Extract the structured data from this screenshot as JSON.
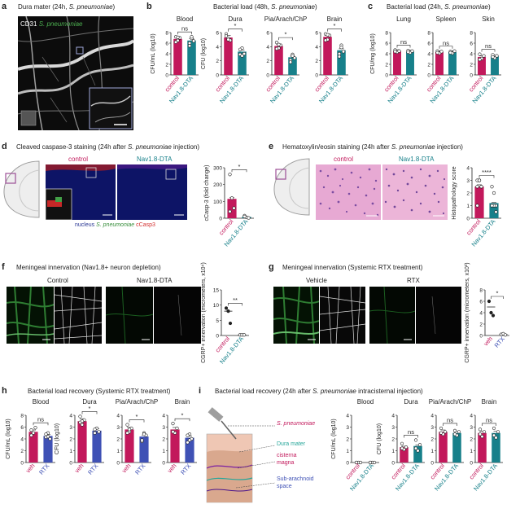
{
  "colors": {
    "control": "#c2185b",
    "nav": "#17808a",
    "veh": "#c2185b",
    "rtx": "#3f51b5",
    "green": "#4caf50",
    "red": "#d32f2f",
    "blue": "#283593"
  },
  "panels": {
    "a": {
      "letter": "a",
      "title": "Dura mater (24h, ",
      "title_sp": "S. pneumoniae",
      "title_end": ")",
      "cd31": "CD31",
      "sp": "S. pneumoniae"
    },
    "b": {
      "letter": "b",
      "title": "Bacterial load (48h, ",
      "title_sp": "S. pneumoniae",
      "title_end": ")"
    },
    "c": {
      "letter": "c",
      "title": "Bacterial load (24h, ",
      "title_sp": "S. pneumoniae",
      "title_end": ")"
    },
    "d": {
      "letter": "d",
      "title": "Cleaved caspase-3 staining (24h after ",
      "title_sp": "S. pneumoniae",
      "title_end": " injection)",
      "control": "control",
      "nav": "Nav1.8-DTA",
      "legend_nucleus": "nucleus",
      "legend_sp": "S. pneumoniae",
      "legend_casp": "cCasp3"
    },
    "e": {
      "letter": "e",
      "title": "Hematoxylin/eosin staining (24h after ",
      "title_sp": "S. pneumoniae",
      "title_end": " injection)",
      "control": "control",
      "nav": "Nav1.8-DTA"
    },
    "f": {
      "letter": "f",
      "title": "Meningeal innervation (Nav1.8+ neuron depletion)",
      "control": "Control",
      "nav": "Nav1.8-DTA"
    },
    "g": {
      "letter": "g",
      "title": "Meningeal innervation (Systemic RTX treatment)",
      "vehicle": "Vehicle",
      "rtx": "RTX"
    },
    "h": {
      "letter": "h",
      "title": "Bacterial load recovery (Systemic RTX treatment)"
    },
    "i": {
      "letter": "i",
      "title": "Bacterial load recovery (24h after ",
      "title_sp": "S. pneumoniae",
      "title_end": " intracisternal injection)",
      "lbl_sp": "S. pneumoniae",
      "lbl_dura": "Dura mater",
      "lbl_cist1": "cisterna",
      "lbl_cist2": "magna",
      "lbl_sub1": "Sub-arachnoid",
      "lbl_sub2": "space"
    }
  },
  "chart_data": [
    {
      "id": "b-blood",
      "type": "bar",
      "title": "Blood",
      "ylabel": "CFU/mL (log10)",
      "ylim": [
        0,
        8
      ],
      "yticks": [
        0,
        2,
        4,
        6,
        8
      ],
      "categories": [
        "control",
        "Nav1.8-DTA"
      ],
      "values": [
        6.8,
        6.5
      ],
      "points": [
        [
          7.2,
          6.5,
          7.0,
          6.2,
          7.1
        ],
        [
          6.0,
          6.9,
          6.4,
          5.5,
          7.2
        ]
      ],
      "sig": "ns"
    },
    {
      "id": "b-dura",
      "type": "bar",
      "title": "Dura",
      "ylabel": "CFU (log10)",
      "ylim": [
        0,
        6
      ],
      "yticks": [
        0,
        2,
        4,
        6
      ],
      "categories": [
        "control",
        "Nav1.8-DTA"
      ],
      "values": [
        5.3,
        3.3
      ],
      "points": [
        [
          5.8,
          5.2,
          4.9,
          5.5,
          5.0
        ],
        [
          2.9,
          3.8,
          3.0,
          3.6,
          2.7
        ]
      ],
      "sig": "*"
    },
    {
      "id": "b-pia",
      "type": "bar",
      "title": "Pia/Arach/ChP",
      "ylabel": "",
      "ylim": [
        0,
        6
      ],
      "yticks": [
        0,
        2,
        4,
        6
      ],
      "categories": [
        "control",
        "Nav1.8-DTA"
      ],
      "values": [
        4.1,
        2.5
      ],
      "points": [
        [
          4.6,
          3.8,
          4.2,
          3.7,
          4.3
        ],
        [
          2.1,
          2.9,
          2.4,
          1.8,
          2.7
        ]
      ],
      "sig": "*"
    },
    {
      "id": "b-brain",
      "type": "bar",
      "title": "Brain",
      "ylabel": "",
      "ylim": [
        0,
        6
      ],
      "yticks": [
        0,
        2,
        4,
        6
      ],
      "categories": [
        "control",
        "Nav1.8-DTA"
      ],
      "values": [
        5.4,
        3.5
      ],
      "points": [
        [
          5.8,
          5.0,
          5.6,
          4.9,
          5.7
        ],
        [
          3.0,
          4.2,
          3.3,
          2.6,
          3.9
        ]
      ],
      "sig": "*"
    },
    {
      "id": "c-lung",
      "type": "bar",
      "title": "Lung",
      "ylabel": "CFU/mg (log10)",
      "ylim": [
        0,
        8
      ],
      "yticks": [
        0,
        2,
        4,
        6,
        8
      ],
      "categories": [
        "control",
        "Nav1.8-DTA"
      ],
      "values": [
        4.5,
        4.4
      ],
      "points": [
        [
          4.7,
          4.3,
          4.5,
          4.4
        ],
        [
          4.6,
          4.2,
          4.5,
          4.3
        ]
      ],
      "sig": "ns"
    },
    {
      "id": "c-spleen",
      "type": "bar",
      "title": "Spleen",
      "ylabel": "",
      "ylim": [
        0,
        8
      ],
      "yticks": [
        0,
        2,
        4,
        6,
        8
      ],
      "categories": [
        "control",
        "Nav1.8-DTA"
      ],
      "values": [
        4.3,
        4.3
      ],
      "points": [
        [
          4.5,
          4.1,
          4.4,
          4.2
        ],
        [
          4.4,
          4.1,
          4.5,
          4.2
        ]
      ],
      "sig": "ns"
    },
    {
      "id": "c-skin",
      "type": "bar",
      "title": "Skin",
      "ylabel": "",
      "ylim": [
        0,
        8
      ],
      "yticks": [
        0,
        2,
        4,
        6,
        8
      ],
      "categories": [
        "control",
        "Nav1.8-DTA"
      ],
      "values": [
        3.4,
        3.5
      ],
      "points": [
        [
          3.9,
          3.1,
          3.6,
          2.9
        ],
        [
          3.8,
          3.2,
          3.6,
          3.4
        ]
      ],
      "sig": "ns"
    },
    {
      "id": "d-casp",
      "type": "bar",
      "title": "",
      "ylabel": "cCasp-3 (fold change)",
      "ylim": [
        0,
        300
      ],
      "yticks": [
        0,
        100,
        200,
        300
      ],
      "categories": [
        "control",
        "Nav1.8-DTA"
      ],
      "values": [
        115,
        8
      ],
      "points": [
        [
          260,
          120,
          60,
          40
        ],
        [
          15,
          5,
          2,
          10
        ]
      ],
      "sig": "*"
    },
    {
      "id": "e-histo",
      "type": "bar",
      "title": "",
      "ylabel": "Histopathology score",
      "ylim": [
        0,
        4
      ],
      "yticks": [
        0,
        1,
        2,
        3,
        4
      ],
      "categories": [
        "control",
        "Nav1.8-DTA"
      ],
      "values": [
        2.5,
        1.2
      ],
      "points": [
        [
          3,
          3,
          2.5,
          2.5,
          3,
          2.5,
          1,
          3
        ],
        [
          2.5,
          1,
          1,
          1,
          1,
          0.5,
          1,
          2
        ]
      ],
      "sig": "****"
    },
    {
      "id": "f-cgrp",
      "type": "scatter",
      "title": "",
      "ylabel": "CGRP+ innervation (micrometers, x10⁴)",
      "ylim": [
        0,
        15
      ],
      "yticks": [
        0,
        5,
        10,
        15
      ],
      "categories": [
        "control",
        "Nav1.8-DTA"
      ],
      "values": [
        8,
        0.2
      ],
      "points": [
        [
          9,
          8,
          4
        ],
        [
          0.2,
          0.2,
          0.2
        ]
      ],
      "sig": "**"
    },
    {
      "id": "g-cgrp",
      "type": "scatter",
      "title": "",
      "ylabel": "CGRP+ innervation (micrometers, x10³)",
      "ylim": [
        0,
        8
      ],
      "yticks": [
        0,
        2,
        4,
        6,
        8
      ],
      "categories": [
        "veh",
        "RTX"
      ],
      "values": [
        5,
        0.2
      ],
      "points": [
        [
          6,
          4,
          3.5
        ],
        [
          0.2,
          0.3,
          0.1
        ]
      ],
      "sig": "*"
    },
    {
      "id": "h-blood",
      "type": "bar",
      "title": "Blood",
      "ylabel": "CFU/mL (log10)",
      "ylim": [
        0,
        8
      ],
      "yticks": [
        0,
        2,
        4,
        6,
        8
      ],
      "categories": [
        "veh",
        "RTX"
      ],
      "values": [
        5.2,
        4.5
      ],
      "points": [
        [
          5.5,
          5.0,
          5.9,
          4.6
        ],
        [
          4.3,
          5.0,
          4.0,
          4.8,
          4.4
        ]
      ],
      "sig": "ns"
    },
    {
      "id": "h-dura",
      "type": "bar",
      "title": "Dura",
      "ylabel": "CFU (log10)",
      "ylim": [
        0,
        4
      ],
      "yticks": [
        0,
        1,
        2,
        3,
        4
      ],
      "categories": [
        "veh",
        "RTX"
      ],
      "values": [
        3.5,
        2.7
      ],
      "points": [
        [
          3.9,
          3.2,
          3.6,
          3.4,
          3.5
        ],
        [
          2.5,
          2.9,
          2.6,
          2.8
        ]
      ],
      "sig": "*"
    },
    {
      "id": "h-pia",
      "type": "bar",
      "title": "Pia/Arach/ChP",
      "ylabel": "",
      "ylim": [
        0,
        4
      ],
      "yticks": [
        0,
        1,
        2,
        3,
        4
      ],
      "categories": [
        "veh",
        "RTX"
      ],
      "values": [
        2.8,
        2.2
      ],
      "points": [
        [
          3.2,
          2.6,
          2.9,
          2.5,
          2.8
        ],
        [
          1.8,
          2.5,
          2.3,
          1.9,
          2.4
        ]
      ],
      "sig": "*"
    },
    {
      "id": "h-brain",
      "type": "bar",
      "title": "Brain",
      "ylabel": "",
      "ylim": [
        0,
        4
      ],
      "yticks": [
        0,
        1,
        2,
        3,
        4
      ],
      "categories": [
        "veh",
        "RTX"
      ],
      "values": [
        2.8,
        2.1
      ],
      "points": [
        [
          3.3,
          2.5,
          2.9,
          2.6
        ],
        [
          1.7,
          2.4,
          2.0,
          2.3,
          1.9
        ]
      ],
      "sig": "*"
    },
    {
      "id": "i-blood",
      "type": "bar",
      "title": "Blood",
      "ylabel": "CFU/mL (log10)",
      "ylim": [
        0,
        4
      ],
      "yticks": [
        0,
        1,
        2,
        3,
        4
      ],
      "categories": [
        "control",
        "Nav1.8-DTA"
      ],
      "values": [
        0,
        0
      ],
      "points": [
        [
          0,
          0,
          0,
          0
        ],
        [
          0,
          0,
          0,
          0
        ]
      ],
      "sig": ""
    },
    {
      "id": "i-dura",
      "type": "bar",
      "title": "Dura",
      "ylabel": "CFU (log10)",
      "ylim": [
        0,
        4
      ],
      "yticks": [
        0,
        1,
        2,
        3,
        4
      ],
      "categories": [
        "control",
        "Nav1.8-DTA"
      ],
      "values": [
        1.3,
        1.4
      ],
      "points": [
        [
          1.6,
          1.1,
          1.3,
          1.2
        ],
        [
          1.9,
          1.0,
          1.5,
          1.2
        ]
      ],
      "sig": "ns"
    },
    {
      "id": "i-pia",
      "type": "bar",
      "title": "Pia/Arach/ChP",
      "ylabel": "",
      "ylim": [
        0,
        4
      ],
      "yticks": [
        0,
        1,
        2,
        3,
        4
      ],
      "categories": [
        "control",
        "Nav1.8-DTA"
      ],
      "values": [
        2.6,
        2.5
      ],
      "points": [
        [
          2.9,
          2.4,
          2.6,
          2.5
        ],
        [
          2.7,
          2.3,
          2.6,
          2.4
        ]
      ],
      "sig": "ns"
    },
    {
      "id": "i-brain",
      "type": "bar",
      "title": "Brain",
      "ylabel": "",
      "ylim": [
        0,
        4
      ],
      "yticks": [
        0,
        1,
        2,
        3,
        4
      ],
      "categories": [
        "control",
        "Nav1.8-DTA"
      ],
      "values": [
        2.5,
        2.5
      ],
      "points": [
        [
          2.8,
          2.2,
          2.6,
          2.4
        ],
        [
          2.9,
          2.1,
          2.6,
          2.3
        ]
      ],
      "sig": "ns"
    }
  ]
}
